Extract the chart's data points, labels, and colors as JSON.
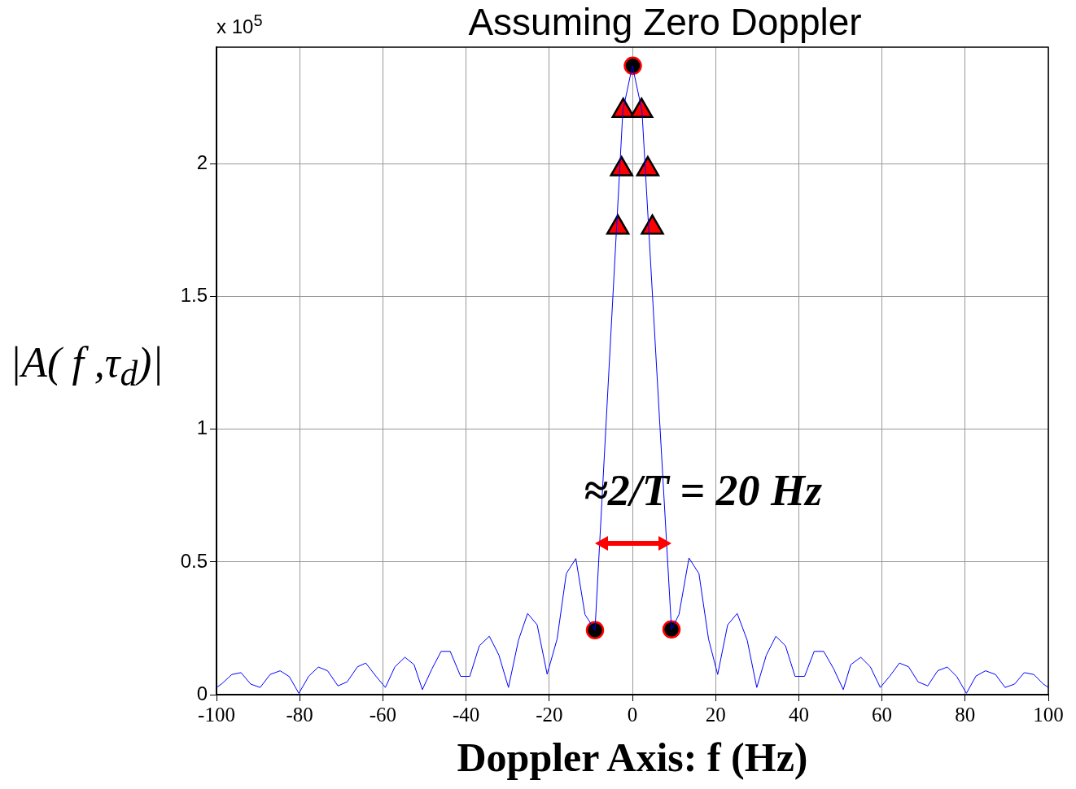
{
  "chart_data": {
    "type": "line",
    "title": "Assuming Zero Doppler",
    "xlabel": "Doppler Axis: f (Hz)",
    "ylabel": "|A( f ,τ$_{d}$)|",
    "annotations": [
      "x 10$^{5}$",
      "≈2/T = 20 Hz"
    ],
    "xlim": [
      -100,
      100
    ],
    "xticks": [
      -100,
      -80,
      -60,
      -40,
      -20,
      0,
      20,
      40,
      60,
      80,
      100
    ],
    "ylim": [
      0,
      2.44
    ],
    "yticks": [
      0,
      0.5,
      1,
      1.5,
      2
    ],
    "grid": true,
    "legend": false,
    "series": [
      {
        "color": "#0000ff",
        "marker": "none",
        "line_style": "solid",
        "x": [
          -100,
          -98.8,
          -96.3,
          -94.1,
          -91.8,
          -89.5,
          -87.1,
          -84.7,
          -82.5,
          -80.2,
          -77.8,
          -75.5,
          -73.3,
          -70.8,
          -68.6,
          -66.1,
          -64.1,
          -61.7,
          -59.4,
          -57.1,
          -54.7,
          -52.5,
          -50.5,
          -48.2,
          -46.0,
          -43.8,
          -41.3,
          -39.1,
          -36.8,
          -34.4,
          -32.1,
          -29.8,
          -27.4,
          -25.2,
          -22.9,
          -20.5,
          -18.1,
          -15.9,
          -13.6,
          -11.4,
          -9.0,
          -2.3,
          0,
          2.3,
          9.4,
          11.2,
          13.6,
          16.0,
          18.3,
          20.5,
          22.9,
          25.2,
          27.6,
          29.9,
          32.2,
          34.5,
          36.8,
          39.1,
          41.4,
          43.7,
          46.0,
          48.4,
          50.7,
          52.5,
          54.9,
          57.2,
          59.6,
          61.9,
          64.2,
          66.4,
          68.7,
          71.0,
          73.4,
          75.7,
          78.0,
          80.3,
          82.6,
          84.9,
          87.3,
          89.6,
          91.9,
          94.2,
          96.5,
          98.8,
          100
        ],
        "values": [
          0.027,
          0.04,
          0.076,
          0.083,
          0.04,
          0.027,
          0.076,
          0.09,
          0.068,
          0.005,
          0.07,
          0.104,
          0.09,
          0.033,
          0.048,
          0.105,
          0.119,
          0.07,
          0.027,
          0.105,
          0.141,
          0.113,
          0.019,
          0.097,
          0.163,
          0.163,
          0.069,
          0.069,
          0.184,
          0.22,
          0.149,
          0.027,
          0.205,
          0.306,
          0.263,
          0.077,
          0.21,
          0.456,
          0.513,
          0.302,
          0.243,
          2.2,
          2.37,
          2.2,
          0.246,
          0.302,
          0.515,
          0.456,
          0.21,
          0.076,
          0.263,
          0.306,
          0.205,
          0.027,
          0.149,
          0.22,
          0.184,
          0.069,
          0.069,
          0.163,
          0.163,
          0.097,
          0.019,
          0.113,
          0.141,
          0.105,
          0.027,
          0.07,
          0.119,
          0.105,
          0.048,
          0.033,
          0.09,
          0.104,
          0.068,
          0.005,
          0.07,
          0.09,
          0.076,
          0.027,
          0.04,
          0.083,
          0.076,
          0.04,
          0.027
        ]
      },
      {
        "type": "scatter",
        "color": "#000000",
        "marker": "circle",
        "x": [
          0.1,
          -9.0,
          9.4
        ],
        "values": [
          2.37,
          0.243,
          0.246
        ]
      },
      {
        "type": "scatter",
        "color": "#ff0000",
        "marker": "triangle",
        "x": [
          -2.2,
          -2.6,
          -3.5,
          2.2,
          3.7,
          4.8
        ],
        "values": [
          2.2,
          1.98,
          1.76,
          2.2,
          1.98,
          1.76
        ]
      }
    ]
  }
}
